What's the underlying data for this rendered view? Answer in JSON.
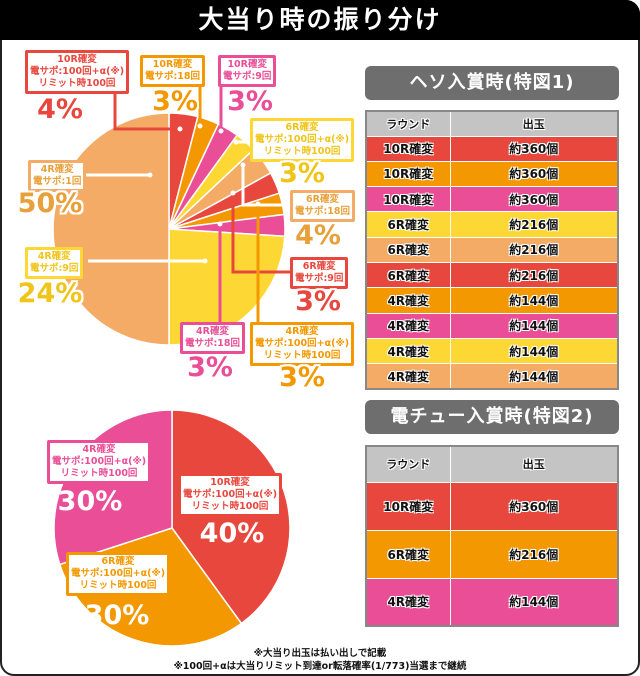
{
  "title": "大当り時の振り分け",
  "colors": {
    "red": "#e8473e",
    "orange": "#f39800",
    "pink": "#e94e97",
    "yellow": "#fdd835",
    "lightorange": "#f3ab66"
  },
  "chart_data": [
    {
      "type": "pie",
      "slices": [
        {
          "label": "10R確変\n電サポ:100回+α(※)\nリミット時100回",
          "value": 4,
          "pct": "4%",
          "color": "#e8473e"
        },
        {
          "label": "10R確変\n電サポ:18回",
          "value": 3,
          "pct": "3%",
          "color": "#f39800"
        },
        {
          "label": "10R確変\n電サポ:9回",
          "value": 3,
          "pct": "3%",
          "color": "#e94e97"
        },
        {
          "label": "6R確変\n電サポ:100回+α(※)\nリミット時100回",
          "value": 3,
          "pct": "3%",
          "color": "#fdd835"
        },
        {
          "label": "6R確変\n電サポ:18回",
          "value": 4,
          "pct": "4%",
          "color": "#f3ab66"
        },
        {
          "label": "6R確変\n電サポ:9回",
          "value": 3,
          "pct": "3%",
          "color": "#e8473e"
        },
        {
          "label": "4R確変\n電サポ:100回+α(※)\nリミット時100回",
          "value": 3,
          "pct": "3%",
          "color": "#f39800"
        },
        {
          "label": "4R確変\n電サポ:18回",
          "value": 3,
          "pct": "3%",
          "color": "#e94e97"
        },
        {
          "label": "4R確変\n電サポ:9回",
          "value": 24,
          "pct": "24%",
          "color": "#fdd835"
        },
        {
          "label": "4R確変\n電サポ:1回",
          "value": 50,
          "pct": "50%",
          "color": "#f3ab66"
        }
      ]
    },
    {
      "type": "pie",
      "slices": [
        {
          "label": "10R確変\n電サポ:100回+α(※)\nリミット時100回",
          "value": 40,
          "pct": "40%",
          "color": "#e8473e"
        },
        {
          "label": "6R確変\n電サポ:100回+α(※)\nリミット時100回",
          "value": 30,
          "pct": "30%",
          "color": "#f39800"
        },
        {
          "label": "4R確変\n電サポ:100回+α(※)\nリミット時100回",
          "value": 30,
          "pct": "30%",
          "color": "#e94e97"
        }
      ]
    }
  ],
  "table1": {
    "title": "ヘソ入賞時(特図1)",
    "headers": [
      "ラウンド",
      "出玉"
    ],
    "rows": [
      {
        "round": "10R確変",
        "payout": "約360個",
        "color": "#e8473e"
      },
      {
        "round": "10R確変",
        "payout": "約360個",
        "color": "#f39800"
      },
      {
        "round": "10R確変",
        "payout": "約360個",
        "color": "#e94e97"
      },
      {
        "round": "6R確変",
        "payout": "約216個",
        "color": "#fdd835"
      },
      {
        "round": "6R確変",
        "payout": "約216個",
        "color": "#f3ab66"
      },
      {
        "round": "6R確変",
        "payout": "約216個",
        "color": "#e8473e"
      },
      {
        "round": "4R確変",
        "payout": "約144個",
        "color": "#f39800"
      },
      {
        "round": "4R確変",
        "payout": "約144個",
        "color": "#e94e97"
      },
      {
        "round": "4R確変",
        "payout": "約144個",
        "color": "#fdd835"
      },
      {
        "round": "4R確変",
        "payout": "約144個",
        "color": "#f3ab66"
      }
    ]
  },
  "table2": {
    "title": "電チュー入賞時(特図2)",
    "headers": [
      "ラウンド",
      "出玉"
    ],
    "rows": [
      {
        "round": "10R確変",
        "payout": "約360個",
        "color": "#e8473e"
      },
      {
        "round": "6R確変",
        "payout": "約216個",
        "color": "#f39800"
      },
      {
        "round": "4R確変",
        "payout": "約144個",
        "color": "#e94e97"
      }
    ]
  },
  "notes": [
    "※大当り出玉は払い出しで記載",
    "※100回+αは大当りリミット到達or転落確率(1/773)当選まで継続"
  ]
}
